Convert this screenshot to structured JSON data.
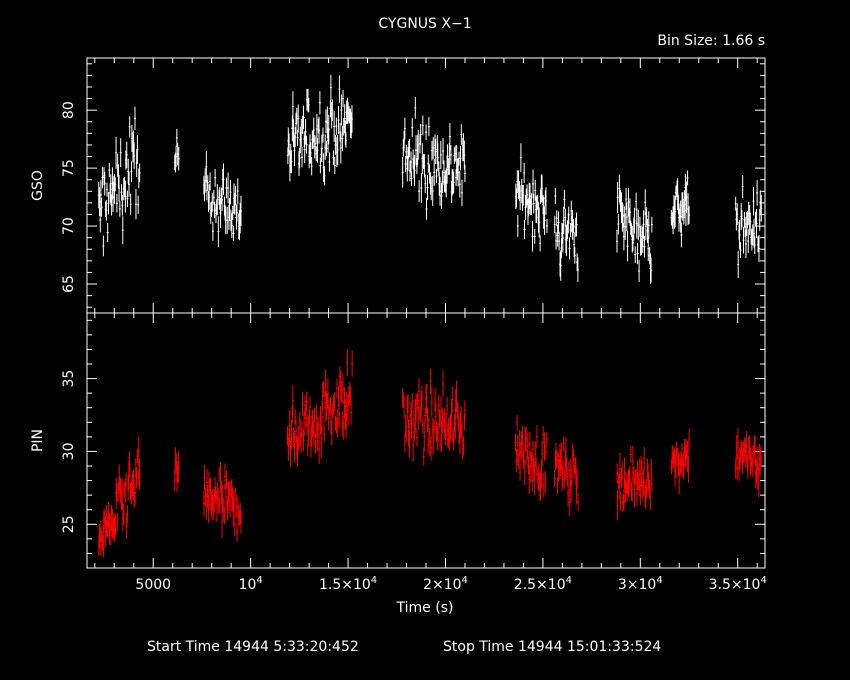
{
  "chart_data": {
    "type": "scatter",
    "title": "CYGNUS X−1",
    "bin_size_label": "Bin Size: 1.66 s",
    "xlabel": "Time (s)",
    "xlim": [
      1600,
      36400
    ],
    "x_ticks": [
      {
        "value": 5000,
        "label": "5000"
      },
      {
        "value": 10000,
        "label": "10",
        "exp": "4"
      },
      {
        "value": 15000,
        "label": "1.5×10",
        "exp": "4"
      },
      {
        "value": 20000,
        "label": "2×10",
        "exp": "4"
      },
      {
        "value": 25000,
        "label": "2.5×10",
        "exp": "4"
      },
      {
        "value": 30000,
        "label": "3×10",
        "exp": "4"
      },
      {
        "value": 35000,
        "label": "3.5×10",
        "exp": "4"
      }
    ],
    "footer": {
      "start": "Start Time 14944  5:33:20:452",
      "stop": "Stop Time 14944 15:01:33:524"
    },
    "panels": [
      {
        "name": "GSO",
        "ylabel": "GSO",
        "ylim": [
          62.5,
          84.5
        ],
        "yticks": [
          65,
          70,
          75,
          80
        ],
        "color": "#ffffff",
        "segments": [
          {
            "x0": 2200,
            "x1": 4300,
            "y_start": 71,
            "y_end": 76,
            "noise": 3.2
          },
          {
            "x0": 6100,
            "x1": 6300,
            "y_start": 75,
            "y_end": 75,
            "noise": 2.0
          },
          {
            "x0": 7600,
            "x1": 9500,
            "y_start": 73,
            "y_end": 71,
            "noise": 2.2
          },
          {
            "x0": 11900,
            "x1": 15200,
            "y_start": 77,
            "y_end": 79,
            "noise": 2.8
          },
          {
            "x0": 17800,
            "x1": 21000,
            "y_start": 76,
            "y_end": 75,
            "noise": 2.8
          },
          {
            "x0": 23600,
            "x1": 25200,
            "y_start": 73,
            "y_end": 71,
            "noise": 2.2
          },
          {
            "x0": 25600,
            "x1": 26800,
            "y_start": 70,
            "y_end": 69,
            "noise": 2.5
          },
          {
            "x0": 28800,
            "x1": 30600,
            "y_start": 71,
            "y_end": 69,
            "noise": 2.5
          },
          {
            "x0": 31600,
            "x1": 32500,
            "y_start": 71,
            "y_end": 72,
            "noise": 1.8
          },
          {
            "x0": 34900,
            "x1": 36200,
            "y_start": 70,
            "y_end": 70,
            "noise": 2.2
          }
        ]
      },
      {
        "name": "PIN",
        "ylabel": "PIN",
        "ylim": [
          22,
          39.5
        ],
        "yticks": [
          25,
          30,
          35
        ],
        "color": "#ff0000",
        "segments": [
          {
            "x0": 2200,
            "x1": 4300,
            "y_start": 24,
            "y_end": 28,
            "noise": 1.6
          },
          {
            "x0": 6100,
            "x1": 6300,
            "y_start": 29,
            "y_end": 29,
            "noise": 1.2
          },
          {
            "x0": 7600,
            "x1": 9500,
            "y_start": 27,
            "y_end": 26,
            "noise": 1.4
          },
          {
            "x0": 11900,
            "x1": 15200,
            "y_start": 31,
            "y_end": 34,
            "noise": 1.8
          },
          {
            "x0": 17800,
            "x1": 21000,
            "y_start": 32,
            "y_end": 32,
            "noise": 1.8
          },
          {
            "x0": 23600,
            "x1": 25200,
            "y_start": 30,
            "y_end": 29,
            "noise": 1.4
          },
          {
            "x0": 25600,
            "x1": 26800,
            "y_start": 29,
            "y_end": 28,
            "noise": 1.4
          },
          {
            "x0": 28800,
            "x1": 30600,
            "y_start": 28,
            "y_end": 28,
            "noise": 1.2
          },
          {
            "x0": 31600,
            "x1": 32500,
            "y_start": 29,
            "y_end": 30,
            "noise": 1.0
          },
          {
            "x0": 34900,
            "x1": 36200,
            "y_start": 30,
            "y_end": 29,
            "noise": 1.2
          }
        ]
      }
    ]
  }
}
